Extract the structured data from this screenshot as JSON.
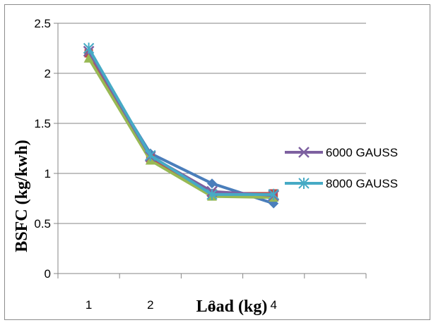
{
  "chart_data": {
    "type": "line",
    "categories": [
      "1",
      "2",
      "3",
      "4"
    ],
    "xlabel": "Load (kg)",
    "ylabel": "BSFC (kg/kwh)",
    "ylim": [
      0,
      2.5
    ],
    "yticks": [
      "0",
      "0.5",
      "1",
      "1.5",
      "2",
      "2.5"
    ],
    "grid": "horizontal",
    "legend_position": "right",
    "series": [
      {
        "values": [
          2.2,
          1.2,
          0.9,
          0.7
        ],
        "color": "#4a7ebb",
        "marker": "diamond",
        "legend": false
      },
      {
        "values": [
          2.2,
          1.15,
          0.8,
          0.8
        ],
        "color": "#be4b48",
        "marker": "square",
        "legend": false
      },
      {
        "values": [
          2.15,
          1.13,
          0.77,
          0.76
        ],
        "color": "#98b954",
        "marker": "triangle",
        "legend": false
      },
      {
        "name": "6000 GAUSS",
        "values": [
          2.22,
          1.17,
          0.82,
          0.78
        ],
        "color": "#7d60a0",
        "marker": "x",
        "legend": true
      },
      {
        "name": "8000 GAUSS",
        "values": [
          2.25,
          1.18,
          0.79,
          0.79
        ],
        "color": "#46aac5",
        "marker": "star",
        "legend": true
      }
    ]
  }
}
